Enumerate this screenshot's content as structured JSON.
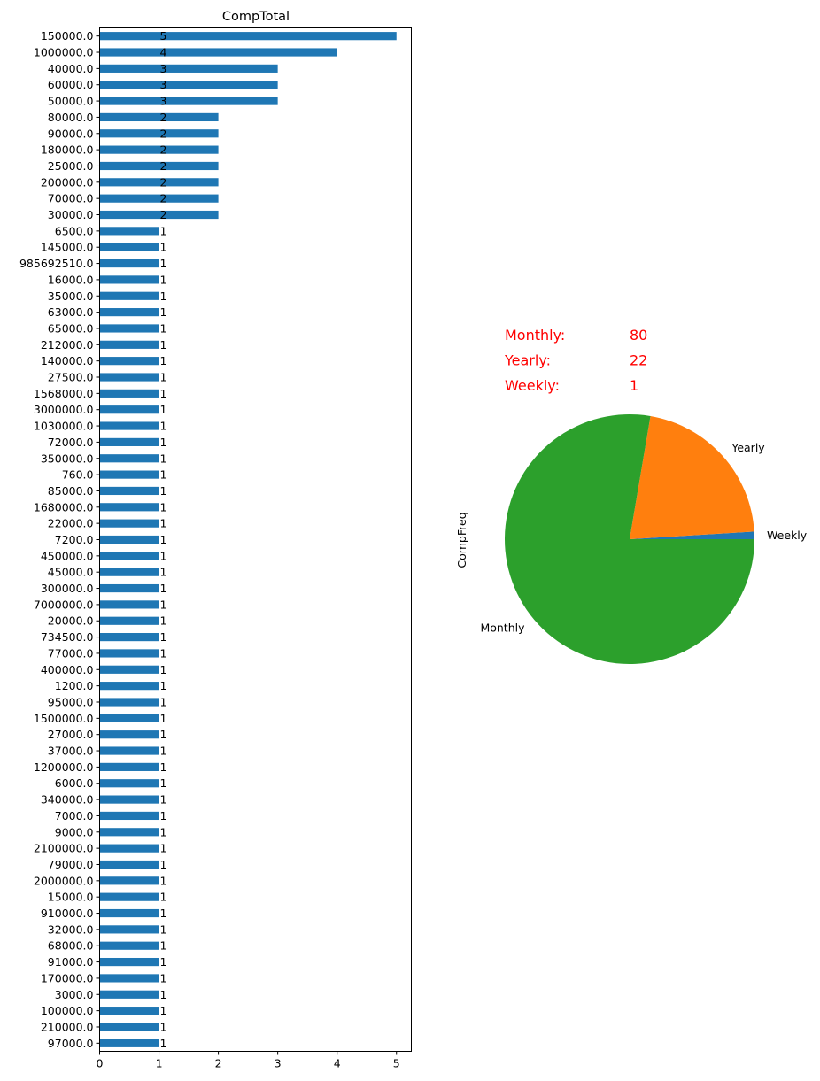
{
  "chart_data": [
    {
      "type": "bar",
      "orientation": "horizontal",
      "title": "CompTotal",
      "xlabel": "",
      "ylabel": "",
      "xlim": [
        0,
        5.25
      ],
      "xticks": [
        "0",
        "1",
        "2",
        "3",
        "4",
        "5"
      ],
      "grid": false,
      "color": "#1f77b4",
      "categories": [
        "150000.0",
        "1000000.0",
        "40000.0",
        "60000.0",
        "50000.0",
        "80000.0",
        "90000.0",
        "180000.0",
        "25000.0",
        "200000.0",
        "70000.0",
        "30000.0",
        "6500.0",
        "145000.0",
        "985692510.0",
        "16000.0",
        "35000.0",
        "63000.0",
        "65000.0",
        "212000.0",
        "140000.0",
        "27500.0",
        "1568000.0",
        "3000000.0",
        "1030000.0",
        "72000.0",
        "350000.0",
        "760.0",
        "85000.0",
        "1680000.0",
        "22000.0",
        "7200.0",
        "450000.0",
        "45000.0",
        "300000.0",
        "7000000.0",
        "20000.0",
        "734500.0",
        "77000.0",
        "400000.0",
        "1200.0",
        "95000.0",
        "1500000.0",
        "27000.0",
        "37000.0",
        "1200000.0",
        "6000.0",
        "340000.0",
        "7000.0",
        "9000.0",
        "2100000.0",
        "79000.0",
        "2000000.0",
        "15000.0",
        "910000.0",
        "32000.0",
        "68000.0",
        "91000.0",
        "170000.0",
        "3000.0",
        "100000.0",
        "210000.0",
        "97000.0"
      ],
      "values": [
        5,
        4,
        3,
        3,
        3,
        2,
        2,
        2,
        2,
        2,
        2,
        2,
        1,
        1,
        1,
        1,
        1,
        1,
        1,
        1,
        1,
        1,
        1,
        1,
        1,
        1,
        1,
        1,
        1,
        1,
        1,
        1,
        1,
        1,
        1,
        1,
        1,
        1,
        1,
        1,
        1,
        1,
        1,
        1,
        1,
        1,
        1,
        1,
        1,
        1,
        1,
        1,
        1,
        1,
        1,
        1,
        1,
        1,
        1,
        1,
        1,
        1,
        1
      ],
      "value_labels": [
        "5",
        "4",
        "3",
        "3",
        "3",
        "2",
        "2",
        "2",
        "2",
        "2",
        "2",
        "2",
        "1",
        "1",
        "1",
        "1",
        "1",
        "1",
        "1",
        "1",
        "1",
        "1",
        "1",
        "1",
        "1",
        "1",
        "1",
        "1",
        "1",
        "1",
        "1",
        "1",
        "1",
        "1",
        "1",
        "1",
        "1",
        "1",
        "1",
        "1",
        "1",
        "1",
        "1",
        "1",
        "1",
        "1",
        "1",
        "1",
        "1",
        "1",
        "1",
        "1",
        "1",
        "1",
        "1",
        "1",
        "1",
        "1",
        "1",
        "1",
        "1",
        "1",
        "1"
      ]
    },
    {
      "type": "pie",
      "ylabel": "CompFreq",
      "slices": [
        {
          "label": "Weekly",
          "value": 1,
          "color": "#1f77b4"
        },
        {
          "label": "Yearly",
          "value": 22,
          "color": "#ff7f0e"
        },
        {
          "label": "Monthly",
          "value": 80,
          "color": "#2ca02c"
        }
      ],
      "annotation_color": "#ff0000",
      "annotations": [
        {
          "name": "Monthly:",
          "count": "80"
        },
        {
          "name": "Yearly:",
          "count": "22"
        },
        {
          "name": "Weekly:",
          "count": "1"
        }
      ]
    }
  ]
}
